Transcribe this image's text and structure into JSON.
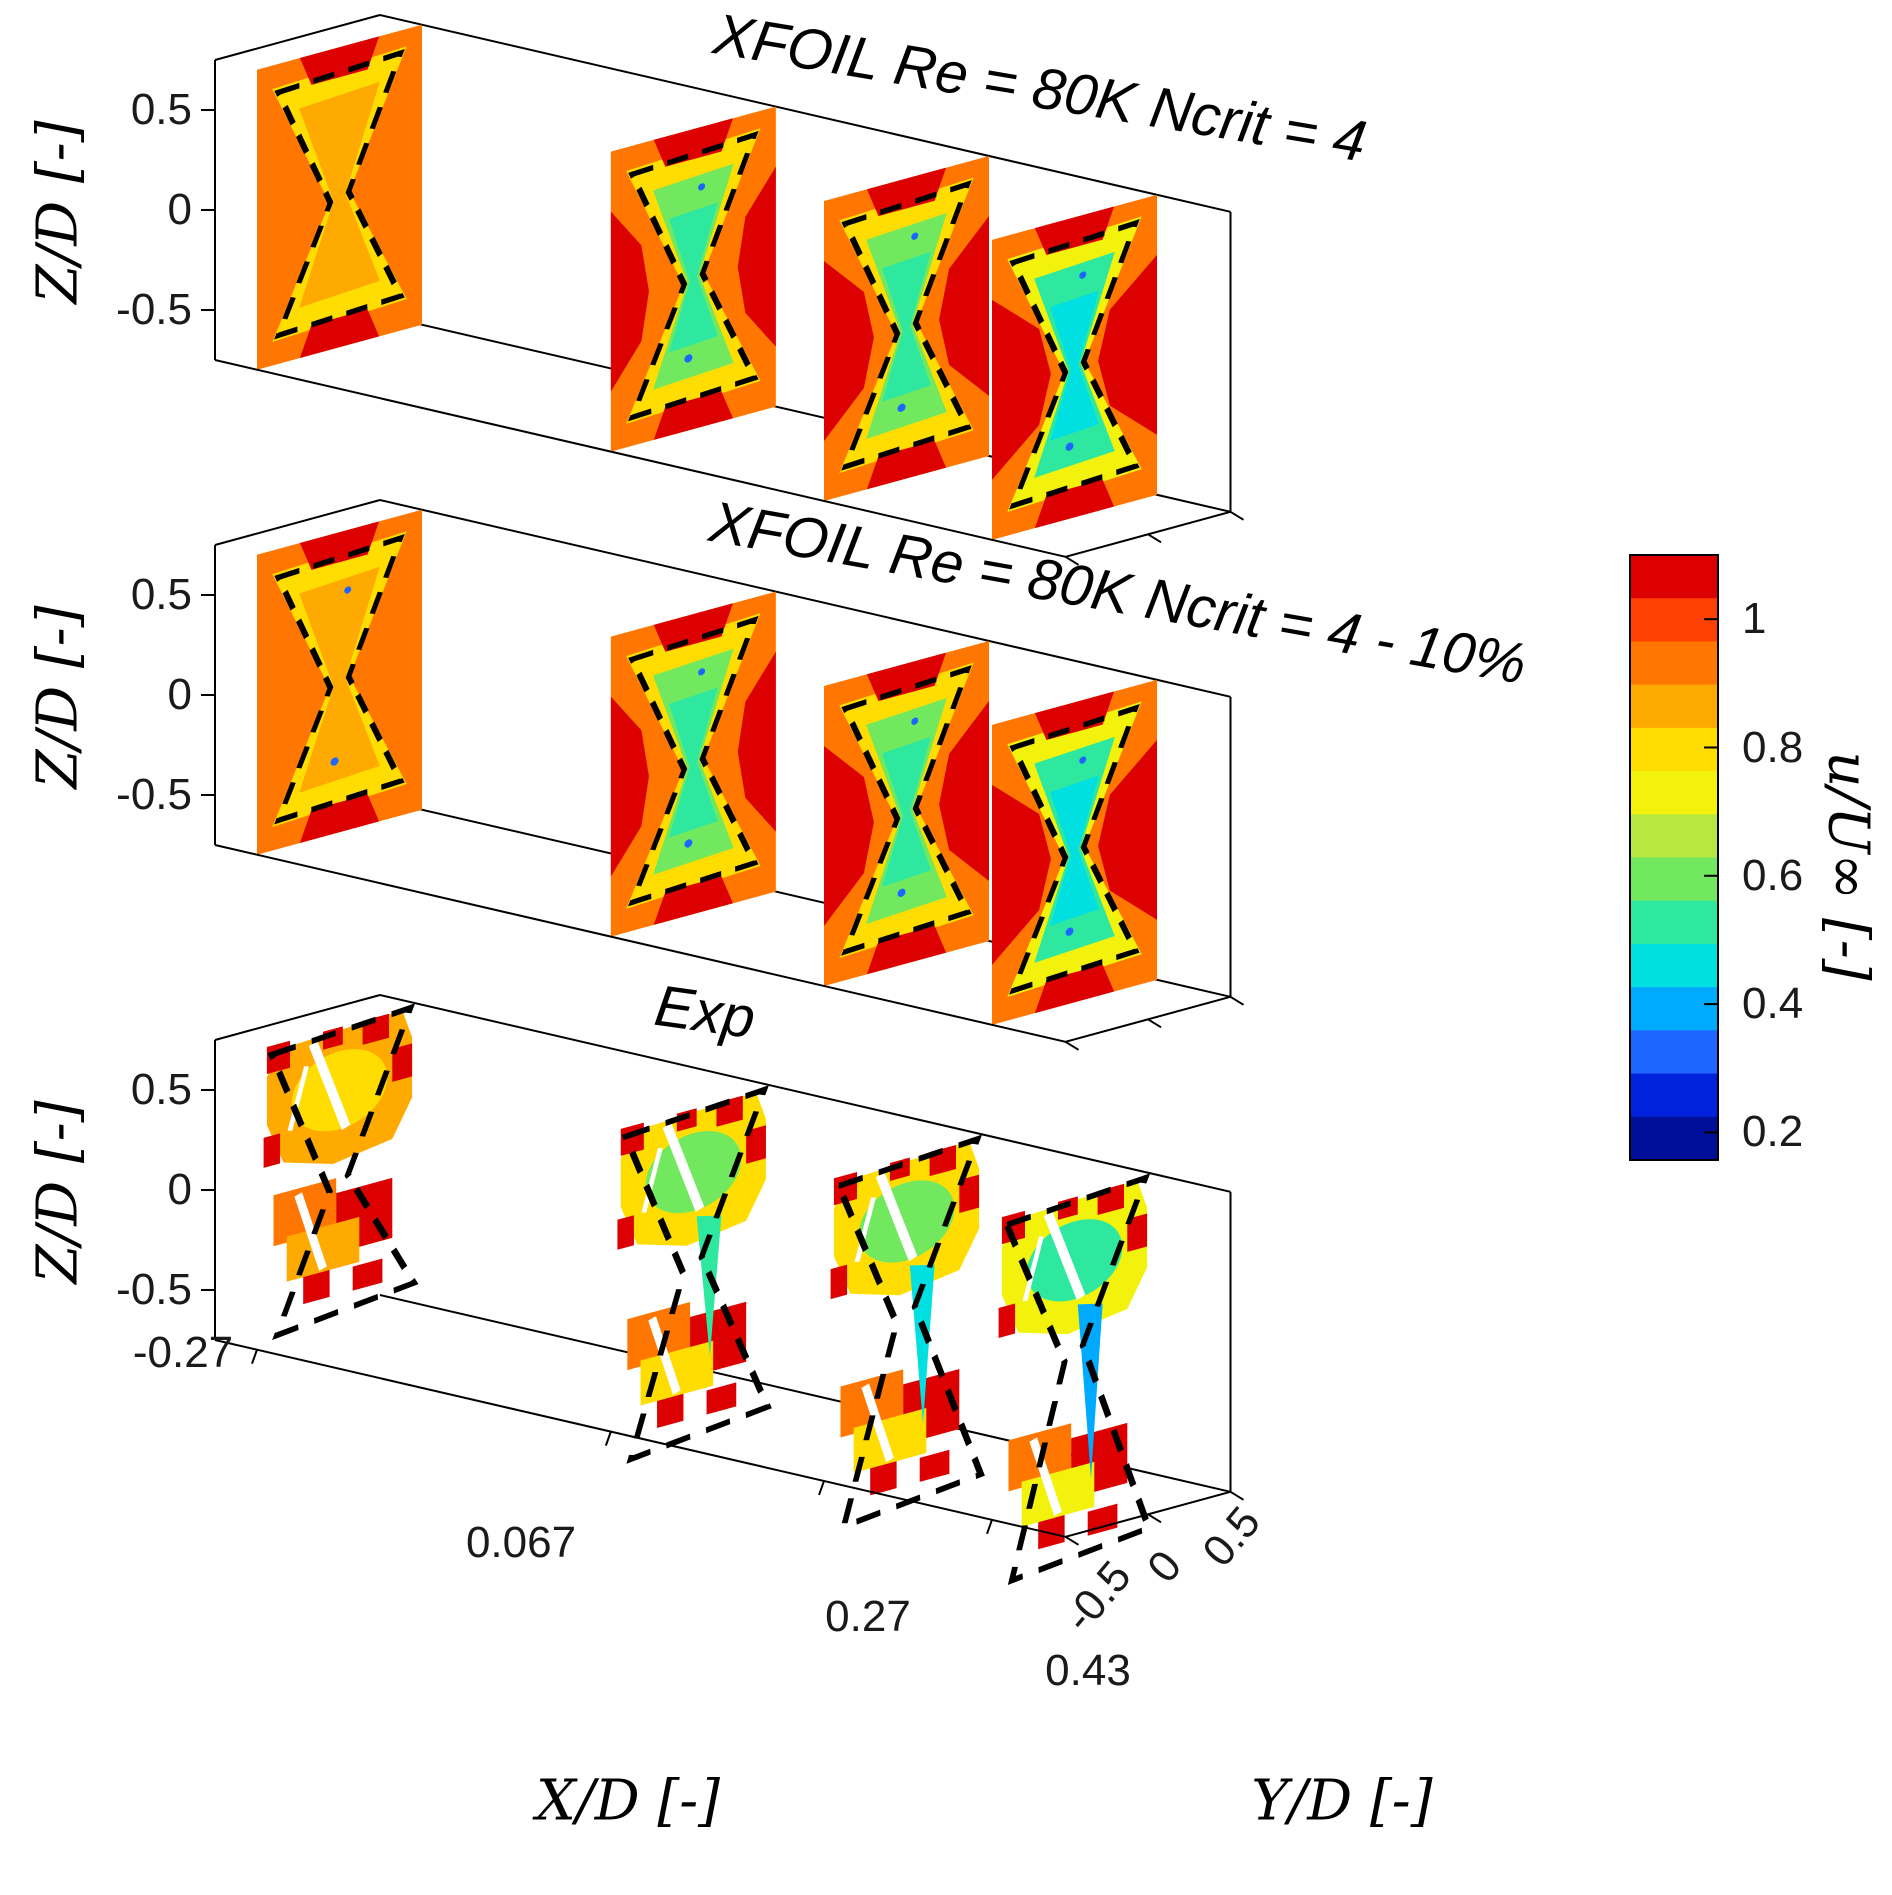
{
  "chart_data": {
    "type": "heatmap",
    "description": "Contours of normalized streamwise velocity u/U-inf on four Y-Z slice planes along X/D, compared across three panels: two XFOIL-based predictions and experiment. Black dashed hourglass marks the rotor footprint on each slice.",
    "x_stations": [
      -0.27,
      0.067,
      0.27,
      0.43
    ],
    "axes": {
      "x": {
        "label": "X/D [-]",
        "ticks": [
          "-0.27",
          "0.067",
          "0.27",
          "0.43"
        ]
      },
      "y": {
        "label": "Y/D [-]",
        "ticks": [
          "-0.5",
          "0",
          "0.5"
        ]
      },
      "z": {
        "label": "Z/D [-]",
        "ticks": [
          "0.5",
          "0",
          "-0.5"
        ]
      }
    },
    "colorbar": {
      "label": "u/U∞ [-]",
      "ticks": [
        "1",
        "0.8",
        "0.6",
        "0.4",
        "0.2"
      ],
      "tick_values": [
        1,
        0.8,
        0.6,
        0.4,
        0.2
      ],
      "vmin": 0.157,
      "vmax": 1.1,
      "outline_color": "#000000",
      "bands_top_to_bottom": [
        "#dd0000",
        "#ff4000",
        "#ff7700",
        "#ffaa00",
        "#ffdd00",
        "#f2f20d",
        "#b8e840",
        "#72e85e",
        "#2ee8a0",
        "#00e0e0",
        "#00aaff",
        "#1e66ff",
        "#0022dd",
        "#000f99"
      ]
    },
    "dashed_outline_color": "#000000",
    "panels": [
      {
        "title": "XFOIL Re = 80K Ncrit = 4",
        "style": "xfoil",
        "slices": [
          {
            "x_over_d": -0.27,
            "freestream_u": 0.95,
            "rim_u": 0.8,
            "core_u": 0.87,
            "inner_u": null,
            "red_side": 0.15,
            "peak_u": 1.08,
            "specks_u": null
          },
          {
            "x_over_d": 0.067,
            "freestream_u": 0.95,
            "rim_u": 0.79,
            "core_u": 0.62,
            "inner_u": 0.55,
            "red_side": 0.55,
            "peak_u": 1.08,
            "specks_u": 0.35
          },
          {
            "x_over_d": 0.27,
            "freestream_u": 0.95,
            "rim_u": 0.78,
            "core_u": 0.6,
            "inner_u": 0.53,
            "red_side": 0.72,
            "peak_u": 1.08,
            "specks_u": 0.35
          },
          {
            "x_over_d": 0.43,
            "freestream_u": 0.95,
            "rim_u": 0.74,
            "core_u": 0.56,
            "inner_u": 0.47,
            "red_side": 0.85,
            "peak_u": 1.08,
            "specks_u": 0.35
          }
        ]
      },
      {
        "title": "XFOIL Re = 80K Ncrit = 4 - 10%",
        "style": "xfoil",
        "slices": [
          {
            "x_over_d": -0.27,
            "freestream_u": 0.95,
            "rim_u": 0.8,
            "core_u": 0.87,
            "inner_u": null,
            "red_side": 0.15,
            "peak_u": 1.08,
            "specks_u": 0.35
          },
          {
            "x_over_d": 0.067,
            "freestream_u": 0.95,
            "rim_u": 0.78,
            "core_u": 0.6,
            "inner_u": 0.53,
            "red_side": 0.55,
            "peak_u": 1.08,
            "specks_u": 0.35
          },
          {
            "x_over_d": 0.27,
            "freestream_u": 0.95,
            "rim_u": 0.77,
            "core_u": 0.58,
            "inner_u": 0.5,
            "red_side": 0.72,
            "peak_u": 1.08,
            "specks_u": 0.35
          },
          {
            "x_over_d": 0.43,
            "freestream_u": 0.95,
            "rim_u": 0.72,
            "core_u": 0.56,
            "inner_u": 0.47,
            "red_side": 0.85,
            "peak_u": 1.08,
            "specks_u": 0.35
          }
        ]
      },
      {
        "title": "Exp",
        "style": "exp",
        "slices": [
          {
            "x_over_d": -0.27,
            "top_rim_u": 0.88,
            "top_core_u": 0.8,
            "bottom_u": 0.9,
            "streak_u": null,
            "peak_u": 1.08,
            "drop": 0.0
          },
          {
            "x_over_d": 0.067,
            "top_rim_u": 0.8,
            "top_core_u": 0.62,
            "bottom_u": 0.95,
            "streak_u": 0.5,
            "peak_u": 1.08,
            "drop": 0.14
          },
          {
            "x_over_d": 0.27,
            "top_rim_u": 0.78,
            "top_core_u": 0.58,
            "bottom_u": 0.95,
            "streak_u": 0.45,
            "peak_u": 1.08,
            "drop": 0.2
          },
          {
            "x_over_d": 0.43,
            "top_rim_u": 0.74,
            "top_core_u": 0.53,
            "bottom_u": 0.92,
            "streak_u": 0.38,
            "peak_u": 1.08,
            "drop": 0.25
          }
        ]
      }
    ]
  }
}
